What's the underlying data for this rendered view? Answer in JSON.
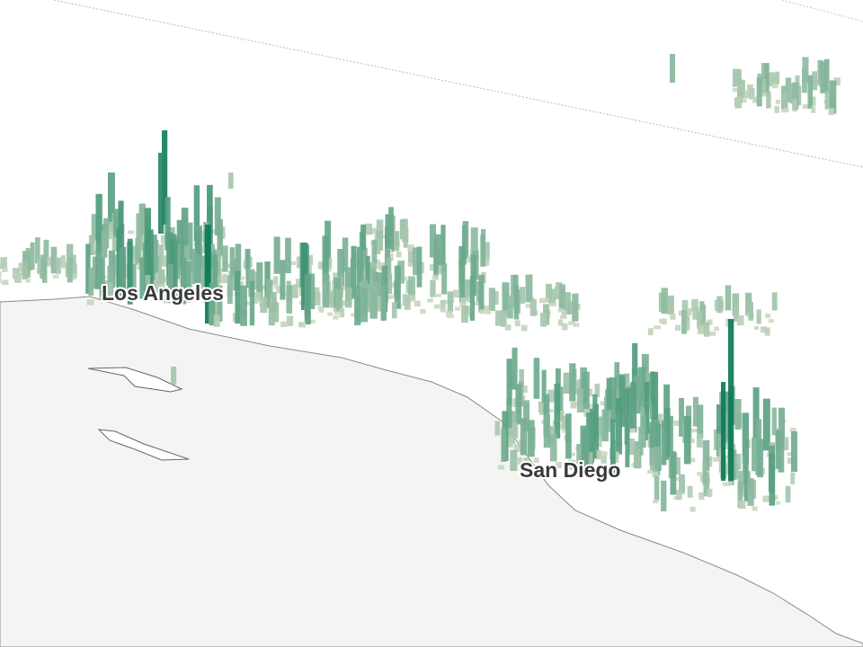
{
  "labels": {
    "los_angeles": "Los Angeles",
    "san_diego": "San Diego"
  }
}
